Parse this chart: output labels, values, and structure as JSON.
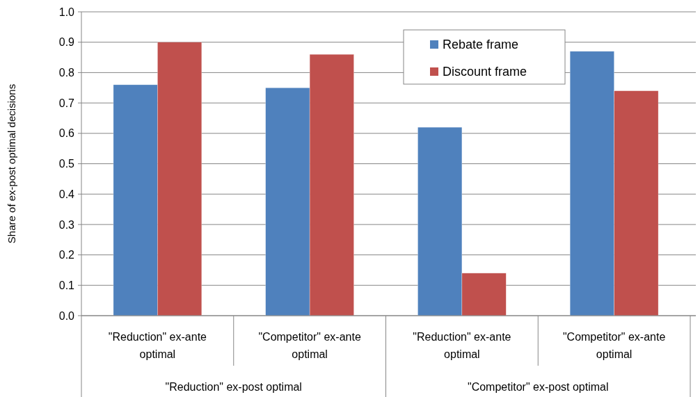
{
  "chart_data": {
    "type": "bar",
    "ylabel": "Share of ex-post optimal decisions",
    "categories": [
      "\"Reduction\" ex-ante optimal",
      "\"Competitor\" ex-ante optimal",
      "\"Reduction\" ex-ante optimal",
      "\"Competitor\" ex-ante optimal"
    ],
    "series": [
      {
        "name": "Rebate frame",
        "color": "#4f81bd",
        "values": [
          0.76,
          0.75,
          0.62,
          0.87
        ]
      },
      {
        "name": "Discount frame",
        "color": "#c0504d",
        "values": [
          0.9,
          0.86,
          0.14,
          0.74
        ]
      }
    ],
    "ylim": [
      0,
      1
    ],
    "yticks": [
      {
        "value": 0,
        "label": "0.0"
      },
      {
        "value": 0.1,
        "label": "0.1"
      },
      {
        "value": 0.2,
        "label": "0.2"
      },
      {
        "value": 0.3,
        "label": "0.3"
      },
      {
        "value": 0.4,
        "label": "0.4"
      },
      {
        "value": 0.5,
        "label": "0.5"
      },
      {
        "value": 0.6,
        "label": "0.6"
      },
      {
        "value": 0.7,
        "label": "0.7"
      },
      {
        "value": 0.8,
        "label": "0.8"
      },
      {
        "value": 0.9,
        "label": "0.9"
      },
      {
        "value": 1,
        "label": "1.0"
      }
    ],
    "grid": "y",
    "legend": "top right",
    "annotations": [
      "\"Reduction\" ex-post optimal",
      "\"Competitor\" ex-post optimal"
    ]
  }
}
